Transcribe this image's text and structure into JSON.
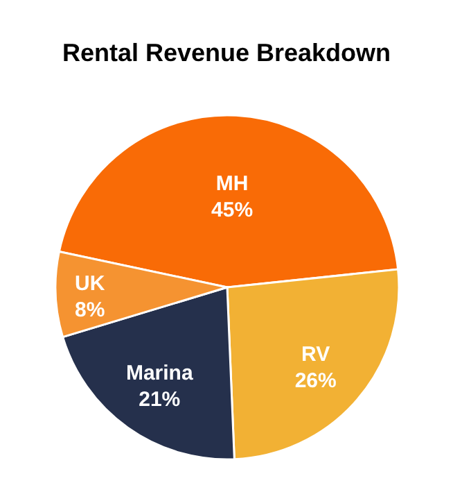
{
  "chart_data": {
    "type": "pie",
    "title": "Rental Revenue Breakdown",
    "categories": [
      "MH",
      "RV",
      "Marina",
      "UK"
    ],
    "values": [
      45,
      26,
      21,
      8
    ],
    "value_labels": [
      "45%",
      "26%",
      "21%",
      "8%"
    ],
    "colors": [
      "#f96b06",
      "#f2b134",
      "#25304c",
      "#f59331"
    ]
  }
}
